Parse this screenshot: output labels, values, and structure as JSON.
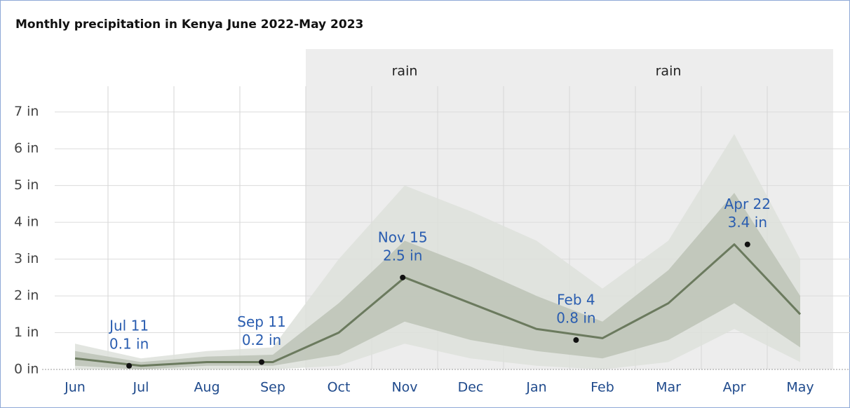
{
  "chart_data": {
    "type": "line",
    "title": "Monthly precipitation in Kenya June 2022-May 2023",
    "categories": [
      "Jun",
      "Jul",
      "Aug",
      "Sep",
      "Oct",
      "Nov",
      "Dec",
      "Jan",
      "Feb",
      "Mar",
      "Apr",
      "May"
    ],
    "series": [
      {
        "color": "#6b7a5e",
        "values": [
          0.3,
          0.1,
          0.2,
          0.2,
          1.0,
          2.5,
          1.8,
          1.1,
          0.85,
          1.8,
          3.4,
          1.5
        ]
      }
    ],
    "bands": [
      {
        "color": "#dde1da",
        "upper": [
          0.7,
          0.3,
          0.5,
          0.6,
          3.0,
          5.0,
          4.3,
          3.5,
          2.2,
          3.5,
          6.4,
          3.0
        ],
        "lower": [
          0,
          0,
          0,
          0,
          0.1,
          0.7,
          0.3,
          0.1,
          0,
          0.2,
          1.1,
          0.2
        ]
      },
      {
        "color": "#bcc3b6",
        "upper": [
          0.5,
          0.2,
          0.35,
          0.4,
          1.8,
          3.5,
          2.8,
          2.0,
          1.3,
          2.7,
          4.8,
          2.0
        ],
        "lower": [
          0.1,
          0,
          0.1,
          0.1,
          0.4,
          1.3,
          0.8,
          0.5,
          0.3,
          0.8,
          1.8,
          0.6
        ]
      }
    ],
    "shaded": [
      {
        "label": "rain",
        "from": 4,
        "to": 6
      },
      {
        "label": "rain",
        "from": 7,
        "to": 11
      }
    ],
    "points": [
      {
        "x": 1.32,
        "value": 0.1,
        "label": "Jul 11",
        "value_label": "0.1 in"
      },
      {
        "x": 3.33,
        "value": 0.2,
        "label": "Sep 11",
        "value_label": "0.2 in"
      },
      {
        "x": 5.47,
        "value": 2.5,
        "label": "Nov 15",
        "value_label": "2.5 in"
      },
      {
        "x": 8.1,
        "value": 0.8,
        "label": "Feb 4",
        "value_label": "0.8 in"
      },
      {
        "x": 10.7,
        "value": 3.4,
        "label": "Apr 22",
        "value_label": "3.4 in"
      }
    ],
    "ylim": [
      0,
      7.7
    ],
    "yticks": [
      {
        "value": 0,
        "label": "0 in"
      },
      {
        "value": 1,
        "label": "1 in"
      },
      {
        "value": 2,
        "label": "2 in"
      },
      {
        "value": 3,
        "label": "3 in"
      },
      {
        "value": 4,
        "label": "4 in"
      },
      {
        "value": 5,
        "label": "5 in"
      },
      {
        "value": 6,
        "label": "6 in"
      },
      {
        "value": 7,
        "label": "7 in"
      }
    ],
    "grid": true
  }
}
